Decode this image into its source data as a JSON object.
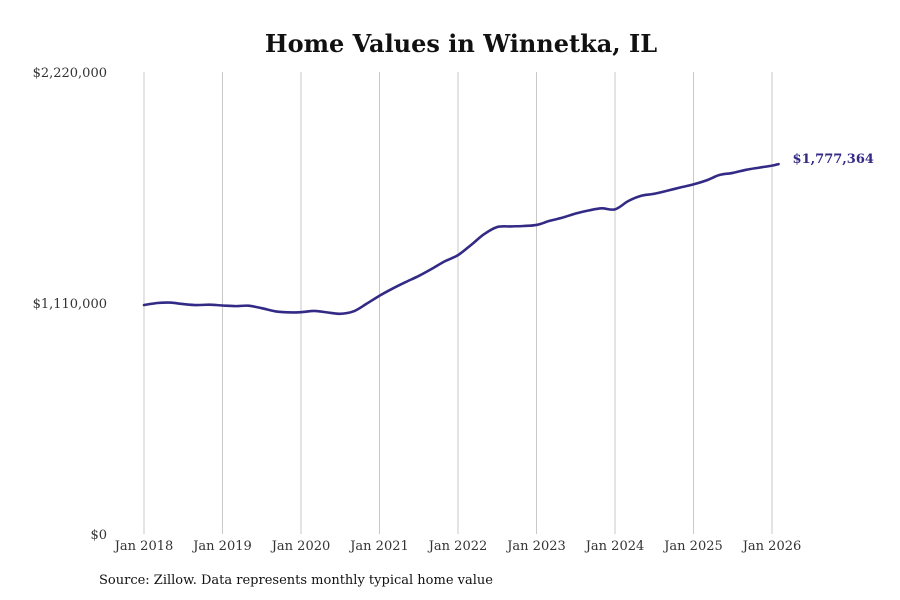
{
  "chart_data": {
    "type": "line",
    "title": "Home Values in Winnetka, IL",
    "xlabel": "",
    "ylabel": "",
    "ylim": [
      0,
      2220000
    ],
    "y_ticks": [
      {
        "value": 0,
        "label": "$0"
      },
      {
        "value": 1110000,
        "label": "$1,110,000"
      },
      {
        "value": 2220000,
        "label": "$2,220,000"
      }
    ],
    "x_range": [
      2018.0,
      2026.0833
    ],
    "x_ticks": [
      {
        "value": 2018,
        "label": "Jan 2018"
      },
      {
        "value": 2019,
        "label": "Jan 2019"
      },
      {
        "value": 2020,
        "label": "Jan 2020"
      },
      {
        "value": 2021,
        "label": "Jan 2021"
      },
      {
        "value": 2022,
        "label": "Jan 2022"
      },
      {
        "value": 2023,
        "label": "Jan 2023"
      },
      {
        "value": 2024,
        "label": "Jan 2024"
      },
      {
        "value": 2025,
        "label": "Jan 2025"
      },
      {
        "value": 2026,
        "label": "Jan 2026"
      }
    ],
    "grid": "vertical",
    "series": [
      {
        "name": "Typical home value",
        "color": "#332a86",
        "end_label": "$1,777,364",
        "x": [
          2018.0,
          2018.17,
          2018.33,
          2018.5,
          2018.67,
          2018.83,
          2019.0,
          2019.17,
          2019.33,
          2019.5,
          2019.67,
          2019.83,
          2020.0,
          2020.17,
          2020.33,
          2020.5,
          2020.67,
          2020.83,
          2021.0,
          2021.17,
          2021.33,
          2021.5,
          2021.67,
          2021.83,
          2022.0,
          2022.17,
          2022.33,
          2022.5,
          2022.67,
          2022.83,
          2023.0,
          2023.17,
          2023.33,
          2023.5,
          2023.67,
          2023.83,
          2024.0,
          2024.17,
          2024.33,
          2024.5,
          2024.67,
          2024.83,
          2025.0,
          2025.17,
          2025.33,
          2025.5,
          2025.67,
          2025.83,
          2026.0,
          2026.0833
        ],
        "values": [
          1100000,
          1110000,
          1112000,
          1105000,
          1100000,
          1102000,
          1098000,
          1095000,
          1097000,
          1085000,
          1070000,
          1065000,
          1066000,
          1072000,
          1065000,
          1058000,
          1070000,
          1105000,
          1145000,
          1180000,
          1210000,
          1240000,
          1275000,
          1310000,
          1340000,
          1390000,
          1440000,
          1475000,
          1478000,
          1480000,
          1485000,
          1505000,
          1520000,
          1540000,
          1555000,
          1565000,
          1560000,
          1600000,
          1625000,
          1635000,
          1650000,
          1665000,
          1680000,
          1700000,
          1725000,
          1735000,
          1750000,
          1760000,
          1770000,
          1777364
        ]
      }
    ]
  },
  "footer": {
    "source": "Source: Zillow. Data represents monthly typical home value"
  }
}
